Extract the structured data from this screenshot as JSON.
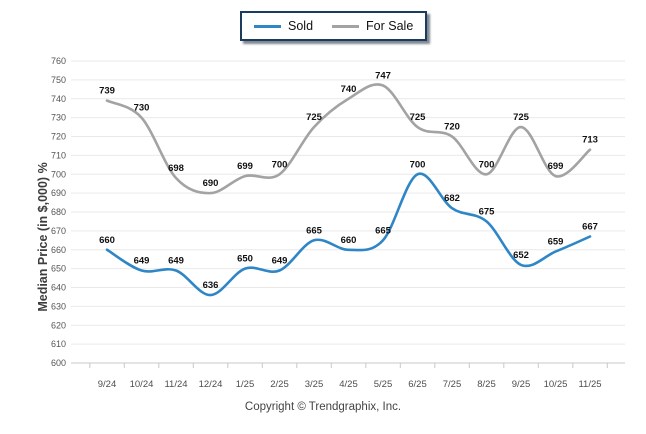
{
  "chart_data": {
    "type": "line",
    "title": "",
    "ylabel": "Median Price (in $,000) %",
    "xlabel": "",
    "ylim": [
      600,
      760
    ],
    "ytick_step": 10,
    "grid": "horizontal gridlines on",
    "legend_position": "top-center",
    "line_style": "smooth",
    "data_labels": true,
    "categories": [
      "9/24",
      "10/24",
      "11/24",
      "12/24",
      "1/25",
      "2/25",
      "3/25",
      "4/25",
      "5/25",
      "6/25",
      "7/25",
      "8/25",
      "9/25",
      "10/25",
      "11/25"
    ],
    "series": [
      {
        "name": "Sold",
        "color": "#2E86C7",
        "values": [
          660,
          649,
          649,
          636,
          650,
          649,
          665,
          660,
          665,
          700,
          682,
          675,
          652,
          659,
          667
        ]
      },
      {
        "name": "For Sale",
        "color": "#A3A3A3",
        "values": [
          739,
          730,
          698,
          690,
          699,
          700,
          725,
          740,
          747,
          725,
          720,
          700,
          725,
          699,
          713
        ]
      }
    ],
    "axis_colors": {
      "tick_label": "#555555",
      "gridline": "#e9e9e9",
      "axis_line": "#c8c8c8"
    }
  },
  "footer": {
    "copyright": "Copyright © Trendgraphix, Inc."
  }
}
